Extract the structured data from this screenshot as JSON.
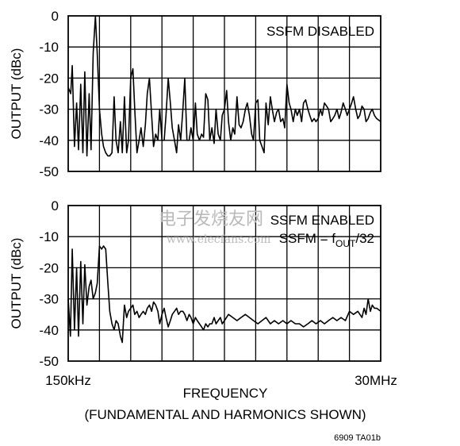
{
  "chart_data": [
    {
      "type": "line",
      "annotation": "SSFM DISABLED",
      "ylabel": "OUTPUT (dBc)",
      "ylim": [
        -50,
        0
      ],
      "yticks": [
        "0",
        "-10",
        "-20",
        "-30",
        "-40",
        "-50"
      ],
      "grid": true,
      "x_range": [
        0,
        1
      ],
      "series": [
        {
          "x": [
            0,
            0.008,
            0.013,
            0.02,
            0.027,
            0.033,
            0.04,
            0.047,
            0.053,
            0.06,
            0.067,
            0.073,
            0.08,
            0.087,
            0.093,
            0.1,
            0.107,
            0.113,
            0.12,
            0.127,
            0.133,
            0.14,
            0.147,
            0.153,
            0.16,
            0.167,
            0.173,
            0.18,
            0.187,
            0.193,
            0.2,
            0.207,
            0.213,
            0.22,
            0.227,
            0.233,
            0.24,
            0.247,
            0.253,
            0.26,
            0.267,
            0.273,
            0.28,
            0.287,
            0.293,
            0.3,
            0.307,
            0.313,
            0.32,
            0.327,
            0.333,
            0.34,
            0.347,
            0.353,
            0.36,
            0.367,
            0.373,
            0.38,
            0.387,
            0.393,
            0.4,
            0.407,
            0.413,
            0.42,
            0.427,
            0.433,
            0.44,
            0.447,
            0.453,
            0.46,
            0.467,
            0.473,
            0.48,
            0.487,
            0.493,
            0.5,
            0.507,
            0.513,
            0.52,
            0.527,
            0.533,
            0.54,
            0.547,
            0.553,
            0.56,
            0.567,
            0.573,
            0.58,
            0.587,
            0.593,
            0.6,
            0.607,
            0.613,
            0.62,
            0.627,
            0.633,
            0.64,
            0.647,
            0.653,
            0.66,
            0.667,
            0.673,
            0.68,
            0.687,
            0.693,
            0.7,
            0.707,
            0.713,
            0.72,
            0.727,
            0.733,
            0.74,
            0.747,
            0.753,
            0.76,
            0.767,
            0.773,
            0.78,
            0.787,
            0.793,
            0.8,
            0.807,
            0.813,
            0.82,
            0.827,
            0.833,
            0.84,
            0.847,
            0.853,
            0.86,
            0.867,
            0.873,
            0.88,
            0.887,
            0.893,
            0.9,
            0.907,
            0.913,
            0.92,
            0.927,
            0.933,
            0.94,
            0.947,
            0.953,
            0.96,
            0.967,
            0.973,
            0.98,
            0.987,
            1.0
          ],
          "y": [
            -23,
            -25,
            -16,
            -42,
            -28,
            -43,
            -22,
            -44,
            -18,
            -45,
            -25,
            -43,
            -12,
            0,
            -12,
            -30,
            -38,
            -42,
            -44,
            -45,
            -45,
            -44,
            -26,
            -40,
            -44,
            -34,
            -44,
            -26,
            -44,
            -40,
            -20,
            -17,
            -30,
            -44,
            -40,
            -36,
            -42,
            -35,
            -25,
            -20,
            -32,
            -42,
            -38,
            -40,
            -30,
            -40,
            -40,
            -32,
            -20,
            -28,
            -36,
            -40,
            -44,
            -35,
            -40,
            -30,
            -20,
            -40,
            -40,
            -36,
            -40,
            -28,
            -38,
            -40,
            -38,
            -39,
            -25,
            -27,
            -40,
            -36,
            -41,
            -30,
            -38,
            -40,
            -32,
            -30,
            -24,
            -34,
            -40,
            -36,
            -38,
            -26,
            -35,
            -36,
            -34,
            -30,
            -28,
            -32,
            -38,
            -40,
            -28,
            -27,
            -40,
            -42,
            -44,
            -28,
            -35,
            -26,
            -30,
            -34,
            -31,
            -30,
            -34,
            -33,
            -36,
            -22,
            -28,
            -30,
            -34,
            -30,
            -32,
            -30,
            -34,
            -28,
            -27,
            -30,
            -32,
            -34,
            -33,
            -34,
            -33,
            -30,
            -32,
            -28,
            -29,
            -30,
            -34,
            -33,
            -32,
            -30,
            -33,
            -31,
            -28,
            -30,
            -32,
            -30,
            -28,
            -26,
            -30,
            -33,
            -32,
            -29,
            -30,
            -34,
            -33,
            -31,
            -30,
            -32,
            -33,
            -34
          ]
        }
      ]
    },
    {
      "type": "line",
      "annotation_lines": [
        "SSFM ENABLED",
        "SSFM = f",
        "OUT",
        "/32"
      ],
      "ylabel": "OUTPUT (dBc)",
      "ylim": [
        -50,
        0
      ],
      "yticks": [
        "0",
        "-10",
        "-20",
        "-30",
        "-40",
        "-50"
      ],
      "grid": true,
      "x_range": [
        0,
        1
      ],
      "xtick_left": "150kHz",
      "xtick_right": "30MHz",
      "xlabel": "FREQUENCY",
      "xlabel_sub": "(FUNDAMENTAL AND HARMONICS SHOWN)",
      "series": [
        {
          "x": [
            0,
            0.007,
            0.013,
            0.02,
            0.027,
            0.033,
            0.04,
            0.047,
            0.053,
            0.06,
            0.067,
            0.073,
            0.08,
            0.087,
            0.093,
            0.1,
            0.107,
            0.113,
            0.12,
            0.127,
            0.133,
            0.14,
            0.147,
            0.153,
            0.16,
            0.167,
            0.173,
            0.18,
            0.187,
            0.193,
            0.2,
            0.207,
            0.213,
            0.22,
            0.227,
            0.233,
            0.24,
            0.247,
            0.253,
            0.26,
            0.267,
            0.273,
            0.28,
            0.287,
            0.293,
            0.3,
            0.307,
            0.313,
            0.32,
            0.327,
            0.333,
            0.34,
            0.347,
            0.353,
            0.36,
            0.367,
            0.373,
            0.38,
            0.387,
            0.393,
            0.4,
            0.407,
            0.413,
            0.42,
            0.427,
            0.433,
            0.44,
            0.447,
            0.453,
            0.46,
            0.467,
            0.473,
            0.48,
            0.487,
            0.493,
            0.5,
            0.513,
            0.527,
            0.54,
            0.553,
            0.567,
            0.58,
            0.593,
            0.607,
            0.62,
            0.633,
            0.647,
            0.66,
            0.673,
            0.687,
            0.7,
            0.713,
            0.727,
            0.74,
            0.753,
            0.767,
            0.78,
            0.793,
            0.807,
            0.82,
            0.833,
            0.847,
            0.86,
            0.873,
            0.887,
            0.9,
            0.913,
            0.927,
            0.94,
            0.947,
            0.953,
            0.96,
            0.967,
            0.973,
            0.98,
            0.987,
            1.0
          ],
          "y": [
            -30,
            -42,
            -14,
            -40,
            -20,
            -42,
            -18,
            -38,
            -19,
            -32,
            -26,
            -24,
            -30,
            -28,
            -25,
            -13,
            -14,
            -13,
            -14,
            -25,
            -34,
            -38,
            -40,
            -37,
            -38,
            -42,
            -44,
            -32,
            -36,
            -34,
            -33,
            -32,
            -35,
            -34,
            -36,
            -35,
            -34,
            -35,
            -33,
            -32,
            -34,
            -31,
            -32,
            -34,
            -38,
            -35,
            -33,
            -36,
            -39,
            -37,
            -35,
            -34,
            -33,
            -35,
            -34,
            -34,
            -35,
            -37,
            -35,
            -36,
            -38,
            -36,
            -37,
            -38,
            -39,
            -40,
            -38,
            -39,
            -38,
            -38,
            -36,
            -38,
            -37,
            -36,
            -38,
            -37,
            -35,
            -36,
            -37,
            -36,
            -35,
            -36,
            -37,
            -38,
            -37,
            -36,
            -38,
            -37,
            -38,
            -37,
            -38,
            -37,
            -38,
            -38,
            -39,
            -38,
            -37,
            -38,
            -37,
            -38,
            -37,
            -36,
            -37,
            -36,
            -37,
            -34,
            -35,
            -34,
            -36,
            -33,
            -35,
            -30,
            -34,
            -32,
            -33,
            -33,
            -34
          ]
        }
      ]
    }
  ],
  "figure_code": "6909 TA01b",
  "watermark": {
    "line1": "电子发烧友网",
    "line2": "www.elecfans.com"
  }
}
